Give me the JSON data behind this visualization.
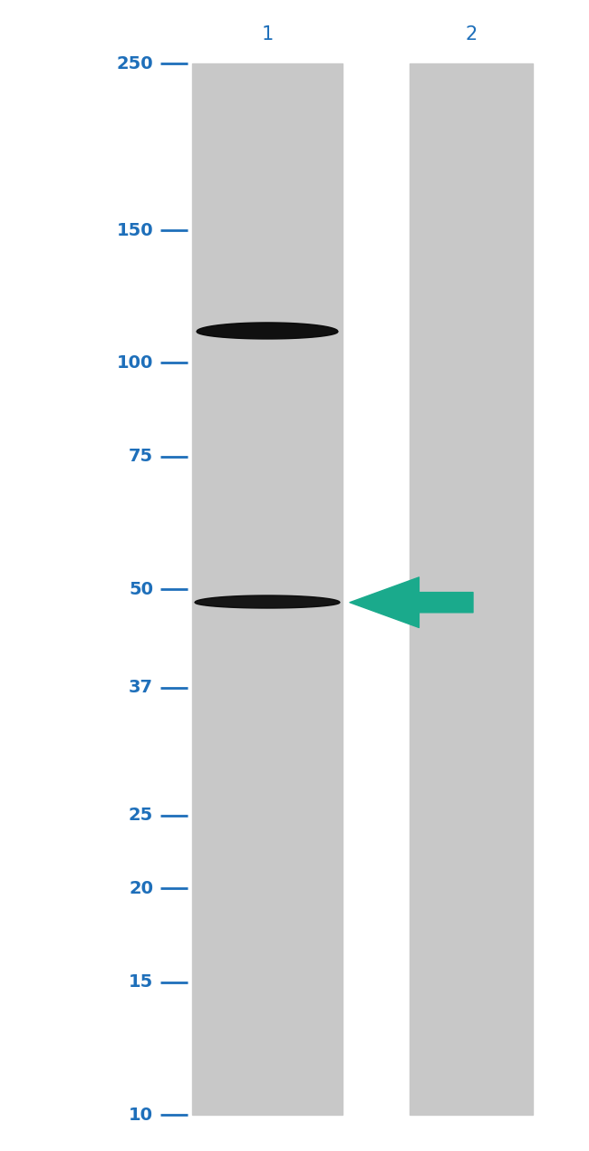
{
  "background_color": "#ffffff",
  "gel_color": "#c8c8c8",
  "mw_labels": [
    "250",
    "150",
    "100",
    "75",
    "50",
    "37",
    "25",
    "20",
    "15",
    "10"
  ],
  "mw_values": [
    250,
    150,
    100,
    75,
    50,
    37,
    25,
    20,
    15,
    10
  ],
  "label_color": "#1e6fba",
  "tick_color": "#1e6fba",
  "arrow_color": "#1aaa8c",
  "band1_mw": 110,
  "band2_mw": 48,
  "lane1_label": "1",
  "lane2_label": "2"
}
